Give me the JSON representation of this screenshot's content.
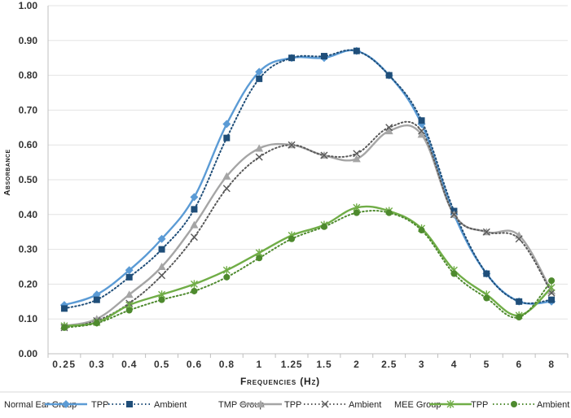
{
  "chart_data": {
    "type": "line",
    "title": "",
    "xlabel": "Frequencies (Hz)",
    "ylabel": "Absorbance",
    "ylim": [
      0.0,
      1.0
    ],
    "y_ticks": [
      "0.00",
      "0.10",
      "0.20",
      "0.30",
      "0.40",
      "0.50",
      "0.60",
      "0.70",
      "0.80",
      "0.90",
      "1.00"
    ],
    "categories": [
      "0.25",
      "0.3",
      "0.4",
      "0.5",
      "0.6",
      "0.8",
      "1",
      "1.25",
      "1.5",
      "2",
      "2.5",
      "3",
      "4",
      "5",
      "6",
      "8"
    ],
    "legend_position": "bottom",
    "legend_groups": [
      "Normal Ear Group",
      "TMP Group",
      "MEE Group"
    ],
    "series": [
      {
        "name": "TPP",
        "group": "Normal Ear Group",
        "color": "#5B9BD5",
        "style": "solid",
        "marker": "diamond",
        "values": [
          0.14,
          0.17,
          0.24,
          0.33,
          0.45,
          0.66,
          0.81,
          0.85,
          0.85,
          0.87,
          0.8,
          0.66,
          0.4,
          0.23,
          0.15,
          0.15
        ]
      },
      {
        "name": "Ambient",
        "group": "Normal Ear Group",
        "color": "#1F4E79",
        "style": "dotted",
        "marker": "square",
        "values": [
          0.13,
          0.155,
          0.22,
          0.3,
          0.415,
          0.62,
          0.79,
          0.85,
          0.855,
          0.87,
          0.8,
          0.67,
          0.41,
          0.23,
          0.15,
          0.155
        ]
      },
      {
        "name": "TPP",
        "group": "TMP Group",
        "color": "#A5A5A5",
        "style": "solid",
        "marker": "triangle",
        "values": [
          0.08,
          0.1,
          0.17,
          0.25,
          0.37,
          0.51,
          0.59,
          0.6,
          0.57,
          0.56,
          0.64,
          0.63,
          0.4,
          0.35,
          0.34,
          0.18
        ]
      },
      {
        "name": "Ambient",
        "group": "TMP Group",
        "color": "#595959",
        "style": "dotted",
        "marker": "x",
        "values": [
          0.075,
          0.095,
          0.145,
          0.225,
          0.335,
          0.475,
          0.565,
          0.6,
          0.57,
          0.575,
          0.65,
          0.64,
          0.4,
          0.35,
          0.33,
          0.175
        ]
      },
      {
        "name": "TPP",
        "group": "MEE Group",
        "color": "#70AD47",
        "style": "solid",
        "marker": "star",
        "values": [
          0.08,
          0.09,
          0.14,
          0.17,
          0.2,
          0.24,
          0.29,
          0.34,
          0.37,
          0.42,
          0.41,
          0.36,
          0.24,
          0.17,
          0.11,
          0.19
        ]
      },
      {
        "name": "Ambient",
        "group": "MEE Group",
        "color": "#4E8A2E",
        "style": "dotted",
        "marker": "circle",
        "values": [
          0.075,
          0.088,
          0.125,
          0.155,
          0.18,
          0.22,
          0.275,
          0.33,
          0.365,
          0.405,
          0.405,
          0.355,
          0.23,
          0.16,
          0.105,
          0.21
        ]
      }
    ]
  }
}
